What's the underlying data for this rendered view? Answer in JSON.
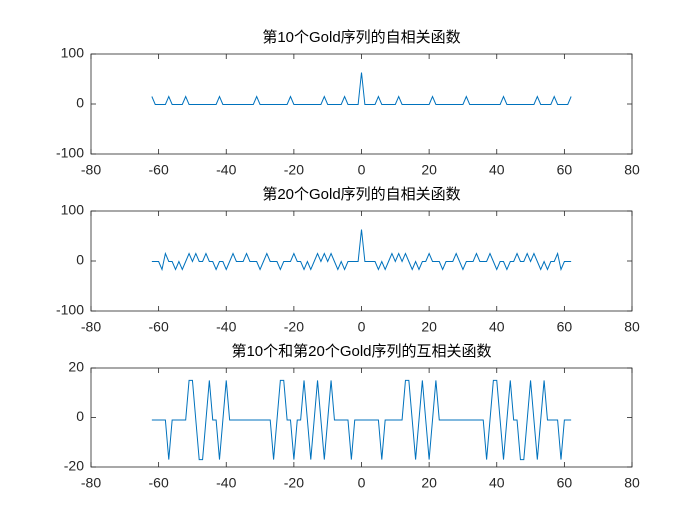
{
  "chart_data": [
    {
      "type": "line",
      "title": "第10个Gold序列的自相关函数",
      "x": [
        -62,
        -61,
        -60,
        -59,
        -58,
        -57,
        -56,
        -55,
        -54,
        -53,
        -52,
        -51,
        -50,
        -49,
        -48,
        -47,
        -46,
        -45,
        -44,
        -43,
        -42,
        -41,
        -40,
        -39,
        -38,
        -37,
        -36,
        -35,
        -34,
        -33,
        -32,
        -31,
        -30,
        -29,
        -28,
        -27,
        -26,
        -25,
        -24,
        -23,
        -22,
        -21,
        -20,
        -19,
        -18,
        -17,
        -16,
        -15,
        -14,
        -13,
        -12,
        -11,
        -10,
        -9,
        -8,
        -7,
        -6,
        -5,
        -4,
        -3,
        -2,
        -1,
        0,
        1,
        2,
        3,
        4,
        5,
        6,
        7,
        8,
        9,
        10,
        11,
        12,
        13,
        14,
        15,
        16,
        17,
        18,
        19,
        20,
        21,
        22,
        23,
        24,
        25,
        26,
        27,
        28,
        29,
        30,
        31,
        32,
        33,
        34,
        35,
        36,
        37,
        38,
        39,
        40,
        41,
        42,
        43,
        44,
        45,
        46,
        47,
        48,
        49,
        50,
        51,
        52,
        53,
        54,
        55,
        56,
        57,
        58,
        59,
        60,
        61,
        62
      ],
      "values": [
        15,
        -1,
        -1,
        -1,
        -1,
        15,
        -1,
        -1,
        -1,
        -1,
        15,
        -1,
        -1,
        -1,
        -1,
        -1,
        -1,
        -1,
        -1,
        -1,
        15,
        -1,
        -1,
        -1,
        -1,
        -1,
        -1,
        -1,
        -1,
        -1,
        -1,
        15,
        -1,
        -1,
        -1,
        -1,
        -1,
        -1,
        -1,
        -1,
        -1,
        15,
        -1,
        -1,
        -1,
        -1,
        -1,
        -1,
        -1,
        -1,
        -1,
        15,
        -1,
        -1,
        -1,
        -1,
        -1,
        15,
        -1,
        -1,
        -1,
        -1,
        63,
        -1,
        -1,
        -1,
        -1,
        15,
        -1,
        -1,
        -1,
        -1,
        -1,
        15,
        -1,
        -1,
        -1,
        -1,
        -1,
        -1,
        -1,
        -1,
        -1,
        15,
        -1,
        -1,
        -1,
        -1,
        -1,
        -1,
        -1,
        -1,
        -1,
        15,
        -1,
        -1,
        -1,
        -1,
        -1,
        -1,
        -1,
        -1,
        -1,
        -1,
        15,
        -1,
        -1,
        -1,
        -1,
        -1,
        -1,
        -1,
        -1,
        -1,
        15,
        -1,
        -1,
        -1,
        -1,
        15,
        -1,
        -1,
        -1,
        -1,
        15
      ],
      "color": "#0072bd",
      "xlim": [
        -80,
        80
      ],
      "xticks": [
        -80,
        -60,
        -40,
        -20,
        0,
        20,
        40,
        60,
        80
      ],
      "ylim": [
        -100,
        100
      ],
      "yticks": [
        -100,
        0,
        100
      ]
    },
    {
      "type": "line",
      "title": "第20个Gold序列的自相关函数",
      "x": [
        -62,
        -61,
        -60,
        -59,
        -58,
        -57,
        -56,
        -55,
        -54,
        -53,
        -52,
        -51,
        -50,
        -49,
        -48,
        -47,
        -46,
        -45,
        -44,
        -43,
        -42,
        -41,
        -40,
        -39,
        -38,
        -37,
        -36,
        -35,
        -34,
        -33,
        -32,
        -31,
        -30,
        -29,
        -28,
        -27,
        -26,
        -25,
        -24,
        -23,
        -22,
        -21,
        -20,
        -19,
        -18,
        -17,
        -16,
        -15,
        -14,
        -13,
        -12,
        -11,
        -10,
        -9,
        -8,
        -7,
        -6,
        -5,
        -4,
        -3,
        -2,
        -1,
        0,
        1,
        2,
        3,
        4,
        5,
        6,
        7,
        8,
        9,
        10,
        11,
        12,
        13,
        14,
        15,
        16,
        17,
        18,
        19,
        20,
        21,
        22,
        23,
        24,
        25,
        26,
        27,
        28,
        29,
        30,
        31,
        32,
        33,
        34,
        35,
        36,
        37,
        38,
        39,
        40,
        41,
        42,
        43,
        44,
        45,
        46,
        47,
        48,
        49,
        50,
        51,
        52,
        53,
        54,
        55,
        56,
        57,
        58,
        59,
        60,
        61,
        62
      ],
      "values": [
        -1,
        -1,
        -1,
        -17,
        15,
        -1,
        -1,
        -17,
        -1,
        -17,
        -1,
        15,
        -1,
        15,
        -1,
        -1,
        15,
        -1,
        -1,
        -17,
        -1,
        -1,
        -17,
        -1,
        15,
        -1,
        -1,
        -1,
        15,
        -1,
        -1,
        -1,
        -17,
        -1,
        15,
        -1,
        -1,
        -1,
        -17,
        -1,
        -1,
        -1,
        15,
        -1,
        -1,
        -17,
        -1,
        -17,
        -1,
        15,
        -1,
        15,
        -1,
        15,
        -1,
        -17,
        -1,
        -17,
        -1,
        -1,
        -1,
        -1,
        63,
        -1,
        -1,
        -1,
        -1,
        -17,
        -1,
        -17,
        -1,
        15,
        -1,
        15,
        -1,
        15,
        -1,
        -17,
        -1,
        -17,
        -1,
        -1,
        15,
        -1,
        -1,
        -1,
        -17,
        -1,
        -1,
        -1,
        15,
        -1,
        -17,
        -1,
        -1,
        -1,
        15,
        -1,
        -1,
        -1,
        15,
        -1,
        -17,
        -1,
        -1,
        -17,
        -1,
        -1,
        15,
        -1,
        -1,
        15,
        -1,
        15,
        -1,
        -17,
        -1,
        -17,
        -1,
        -1,
        15,
        -17,
        -1,
        -1,
        -1
      ],
      "color": "#0072bd",
      "xlim": [
        -80,
        80
      ],
      "xticks": [
        -80,
        -60,
        -40,
        -20,
        0,
        20,
        40,
        60,
        80
      ],
      "ylim": [
        -100,
        100
      ],
      "yticks": [
        -100,
        0,
        100
      ]
    },
    {
      "type": "line",
      "title": "第10个和第20个Gold序列的互相关函数",
      "x": [
        -62,
        -61,
        -60,
        -59,
        -58,
        -57,
        -56,
        -55,
        -54,
        -53,
        -52,
        -51,
        -50,
        -49,
        -48,
        -47,
        -46,
        -45,
        -44,
        -43,
        -42,
        -41,
        -40,
        -39,
        -38,
        -37,
        -36,
        -35,
        -34,
        -33,
        -32,
        -31,
        -30,
        -29,
        -28,
        -27,
        -26,
        -25,
        -24,
        -23,
        -22,
        -21,
        -20,
        -19,
        -18,
        -17,
        -16,
        -15,
        -14,
        -13,
        -12,
        -11,
        -10,
        -9,
        -8,
        -7,
        -6,
        -5,
        -4,
        -3,
        -2,
        -1,
        0,
        1,
        2,
        3,
        4,
        5,
        6,
        7,
        8,
        9,
        10,
        11,
        12,
        13,
        14,
        15,
        16,
        17,
        18,
        19,
        20,
        21,
        22,
        23,
        24,
        25,
        26,
        27,
        28,
        29,
        30,
        31,
        32,
        33,
        34,
        35,
        36,
        37,
        38,
        39,
        40,
        41,
        42,
        43,
        44,
        45,
        46,
        47,
        48,
        49,
        50,
        51,
        52,
        53,
        54,
        55,
        56,
        57,
        58,
        59,
        60,
        61,
        62
      ],
      "values": [
        -1,
        -1,
        -1,
        -1,
        -1,
        -17,
        -1,
        -1,
        -1,
        -1,
        -1,
        15,
        15,
        -1,
        -17,
        -17,
        -1,
        15,
        -1,
        -1,
        -17,
        -1,
        15,
        -1,
        -1,
        -1,
        -1,
        -1,
        -1,
        -1,
        -1,
        -1,
        -1,
        -1,
        -1,
        -1,
        -17,
        -1,
        15,
        15,
        -1,
        -1,
        -17,
        -1,
        -1,
        15,
        -1,
        -17,
        -1,
        15,
        -1,
        -17,
        -1,
        15,
        -1,
        -1,
        -1,
        -1,
        -1,
        -17,
        -1,
        -1,
        -1,
        -1,
        -1,
        -1,
        -1,
        -1,
        -17,
        -1,
        -1,
        -1,
        -1,
        -1,
        -1,
        15,
        15,
        -1,
        -17,
        -1,
        15,
        -1,
        -17,
        -1,
        15,
        -1,
        -1,
        -1,
        -1,
        -1,
        -1,
        -1,
        -1,
        -1,
        -1,
        -1,
        -1,
        -1,
        -1,
        -17,
        -1,
        15,
        15,
        -1,
        -17,
        -1,
        15,
        -1,
        -1,
        -17,
        -17,
        -1,
        15,
        -1,
        -17,
        -1,
        15,
        -1,
        -1,
        -1,
        -1,
        -17,
        -1,
        -1,
        -1
      ],
      "color": "#0072bd",
      "xlim": [
        -80,
        80
      ],
      "xticks": [
        -80,
        -60,
        -40,
        -20,
        0,
        20,
        40,
        60,
        80
      ],
      "ylim": [
        -20,
        20
      ],
      "yticks": [
        -20,
        0,
        20
      ]
    }
  ]
}
